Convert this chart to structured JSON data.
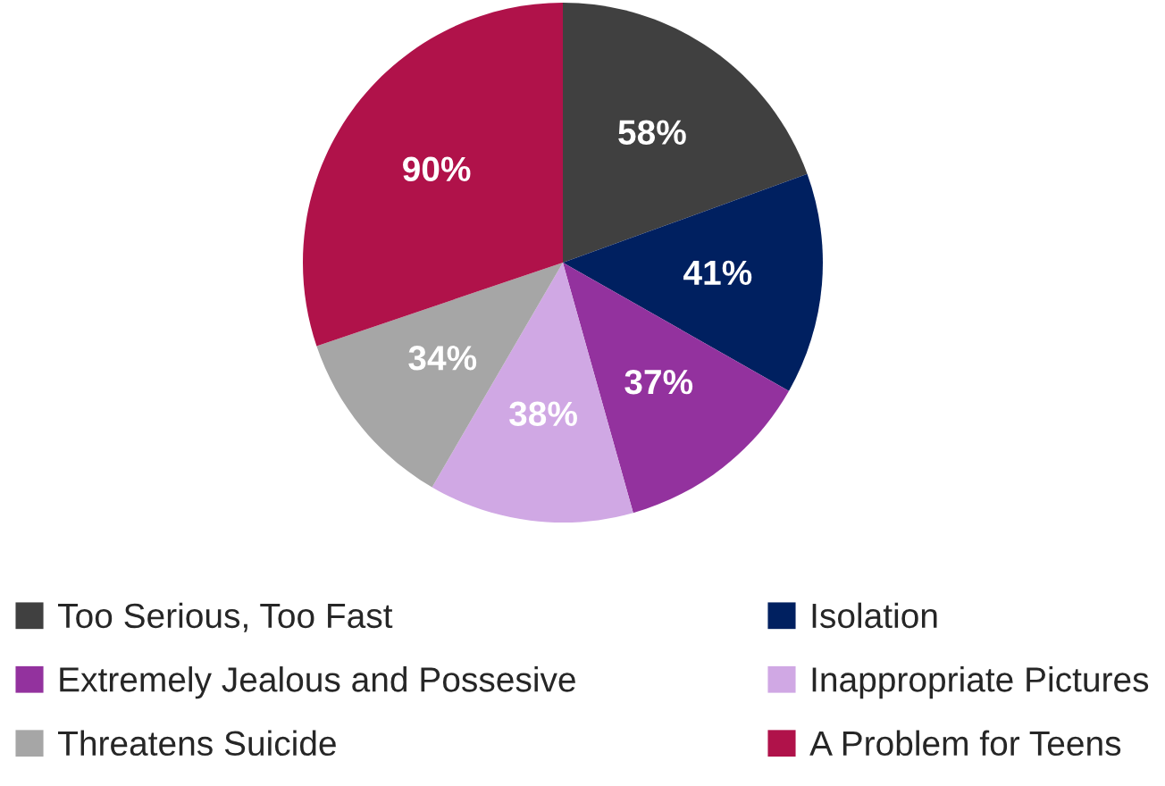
{
  "chart_data": {
    "type": "pie",
    "categories": [
      "Too Serious, Too Fast",
      "Isolation",
      "Extremely Jealous and Possesive",
      "Inappropriate Pictures",
      "Threatens Suicide",
      "A Problem for Teens"
    ],
    "values": [
      58,
      41,
      37,
      38,
      34,
      90
    ],
    "colors": [
      "#404040",
      "#002060",
      "#93329e",
      "#d0a8e4",
      "#a6a6a6",
      "#b0124a"
    ],
    "value_labels": [
      "58%",
      "41%",
      "37%",
      "38%",
      "34%",
      "90%"
    ],
    "legend": "bottom"
  }
}
